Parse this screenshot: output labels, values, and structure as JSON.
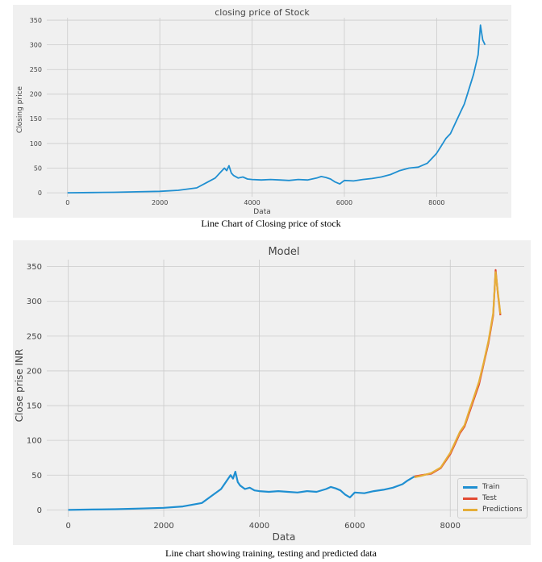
{
  "chart_data": [
    {
      "type": "line",
      "title": "closing price of Stock",
      "xlabel": "Data",
      "ylabel": "Closing price",
      "xlim": [
        -450,
        9550
      ],
      "ylim": [
        -8,
        355
      ],
      "xticks": [
        0,
        2000,
        4000,
        6000,
        8000
      ],
      "yticks": [
        0,
        50,
        100,
        150,
        200,
        250,
        300,
        350
      ],
      "grid": true,
      "series": [
        {
          "color": "#1f8fd1",
          "x": [
            0,
            500,
            1000,
            1500,
            2000,
            2400,
            2800,
            3000,
            3200,
            3300,
            3400,
            3450,
            3500,
            3550,
            3600,
            3700,
            3800,
            3900,
            4000,
            4200,
            4400,
            4600,
            4800,
            5000,
            5200,
            5400,
            5500,
            5600,
            5700,
            5800,
            5900,
            6000,
            6200,
            6400,
            6600,
            6800,
            7000,
            7200,
            7400,
            7600,
            7800,
            8000,
            8100,
            8200,
            8300,
            8400,
            8500,
            8600,
            8700,
            8800,
            8900,
            8950,
            9000,
            9050
          ],
          "y": [
            0,
            0.5,
            1,
            2,
            3,
            5,
            10,
            20,
            30,
            40,
            50,
            45,
            55,
            40,
            35,
            30,
            32,
            28,
            27,
            26,
            27,
            26,
            25,
            27,
            26,
            30,
            33,
            31,
            28,
            22,
            18,
            25,
            24,
            27,
            29,
            32,
            37,
            45,
            50,
            52,
            60,
            80,
            95,
            110,
            120,
            140,
            160,
            180,
            210,
            240,
            280,
            340,
            310,
            300
          ]
        }
      ]
    },
    {
      "type": "line",
      "title": "Model",
      "xlabel": "Data",
      "ylabel": "Close prise INR",
      "xlim": [
        -450,
        9550
      ],
      "ylim": [
        -10,
        360
      ],
      "xticks": [
        0,
        2000,
        4000,
        6000,
        8000
      ],
      "yticks": [
        0,
        50,
        100,
        150,
        200,
        250,
        300,
        350
      ],
      "grid": true,
      "legend_position": "bottom-right",
      "series": [
        {
          "name": "Train",
          "color": "#1f8fd1",
          "x": [
            0,
            500,
            1000,
            1500,
            2000,
            2400,
            2800,
            3000,
            3200,
            3300,
            3400,
            3450,
            3500,
            3550,
            3600,
            3700,
            3800,
            3900,
            4000,
            4200,
            4400,
            4600,
            4800,
            5000,
            5200,
            5400,
            5500,
            5600,
            5700,
            5800,
            5900,
            6000,
            6200,
            6400,
            6600,
            6800,
            7000,
            7100,
            7200,
            7250
          ],
          "y": [
            0,
            0.5,
            1,
            2,
            3,
            5,
            10,
            20,
            30,
            40,
            50,
            45,
            55,
            40,
            35,
            30,
            32,
            28,
            27,
            26,
            27,
            26,
            25,
            27,
            26,
            30,
            33,
            31,
            28,
            22,
            18,
            25,
            24,
            27,
            29,
            32,
            37,
            42,
            46,
            48
          ]
        },
        {
          "name": "Test",
          "color": "#e24a33",
          "x": [
            7250,
            7400,
            7600,
            7800,
            8000,
            8100,
            8200,
            8300,
            8400,
            8500,
            8600,
            8700,
            8800,
            8900,
            8950,
            9000,
            9050
          ],
          "y": [
            48,
            50,
            52,
            60,
            80,
            95,
            110,
            120,
            140,
            160,
            180,
            210,
            240,
            280,
            345,
            310,
            280
          ]
        },
        {
          "name": "Predictions",
          "color": "#e5ae38",
          "x": [
            7250,
            7400,
            7600,
            7800,
            8000,
            8100,
            8200,
            8300,
            8400,
            8500,
            8600,
            8700,
            8800,
            8900,
            8950,
            9000,
            9050
          ],
          "y": [
            47,
            49,
            53,
            61,
            82,
            97,
            112,
            122,
            143,
            163,
            184,
            212,
            243,
            283,
            342,
            312,
            282
          ]
        }
      ]
    }
  ],
  "captions": {
    "first": "Line Chart of Closing price of stock",
    "second": "Line chart showing training, testing and predicted data"
  }
}
